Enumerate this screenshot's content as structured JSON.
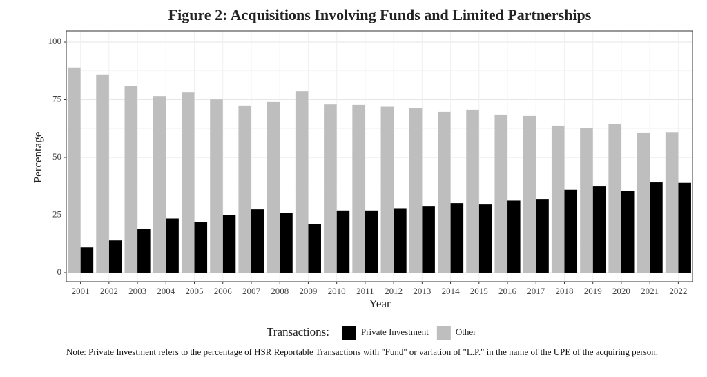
{
  "chart_data": {
    "type": "bar",
    "title": "Figure 2: Acquisitions Involving Funds and Limited Partnerships",
    "x_label": "Year",
    "y_label": "Percentage",
    "categories": [
      "2001",
      "2002",
      "2003",
      "2004",
      "2005",
      "2006",
      "2007",
      "2008",
      "2009",
      "2010",
      "2011",
      "2012",
      "2013",
      "2014",
      "2015",
      "2016",
      "2017",
      "2018",
      "2019",
      "2020",
      "2021",
      "2022"
    ],
    "series": [
      {
        "name": "Private Investment",
        "color": "#000000",
        "values": [
          11,
          14,
          19,
          23.5,
          22,
          25,
          27.5,
          26,
          21,
          27,
          27,
          28,
          28.7,
          30.2,
          29.6,
          31.3,
          32,
          36,
          37.4,
          35.6,
          39.2,
          39
        ]
      },
      {
        "name": "Other",
        "color": "#bebebe",
        "values": [
          89,
          86,
          81,
          76.6,
          78.4,
          75.1,
          72.5,
          74,
          78.7,
          73,
          72.8,
          72,
          71.3,
          69.8,
          70.7,
          68.6,
          68,
          63.8,
          62.6,
          64.4,
          60.8,
          61
        ]
      }
    ],
    "ylim": [
      -3.9,
      104.8
    ],
    "yticks": [
      0,
      25,
      50,
      75,
      100
    ],
    "grid": true,
    "legend_title": "Transactions:",
    "legend_position": "bottom",
    "note": "Note: Private Investment refers to the percentage of HSR Reportable Transactions with \"Fund\" or variation of \"L.P.\" in the name of the UPE of the acquiring person."
  }
}
